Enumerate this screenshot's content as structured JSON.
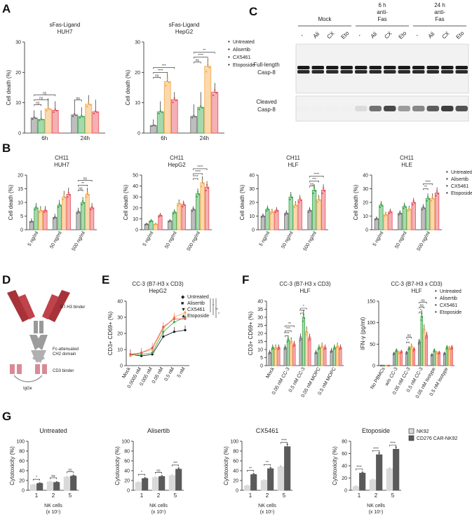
{
  "panel_labels": {
    "A": "A",
    "B": "B",
    "C": "C",
    "D": "D",
    "E": "E",
    "F": "F",
    "G": "G"
  },
  "colors": {
    "untreated": "#6e6e6e",
    "alisertib": "#3aa84a",
    "cx5461": "#f5a94a",
    "etoposide": "#e8505b",
    "nk92": "#d9d9d9",
    "car": "#5a5a5a"
  },
  "legend_treat": [
    "Untreated",
    "Alisertib",
    "CX5461",
    "Etoposide"
  ],
  "legend_treat_marks": [
    "•",
    "•",
    "•",
    "•"
  ],
  "panelA": {
    "charts": [
      {
        "title1": "sFas-Ligand",
        "title2": "HUH7",
        "ylabel": "Cell death (%)",
        "ylim": [
          0,
          30
        ],
        "yticks": [
          "0",
          "10",
          "20",
          "30"
        ],
        "categories": [
          "6h",
          "24h"
        ],
        "series": [
          {
            "name": "Untreated",
            "values": [
              5,
              6
            ]
          },
          {
            "name": "Alisertib",
            "values": [
              4.5,
              5.5
            ]
          },
          {
            "name": "CX5461",
            "values": [
              8,
              9.5
            ]
          },
          {
            "name": "Etoposide",
            "values": [
              7.5,
              7
            ]
          }
        ],
        "errors": [
          [
            2.5,
            5
          ],
          [
            3,
            3
          ],
          [
            3.5,
            3
          ],
          [
            3,
            4
          ]
        ],
        "sig": [
          "ns",
          "ns",
          "ns",
          "ns"
        ]
      },
      {
        "title1": "sFas-Ligand",
        "title2": "HepG2",
        "ylabel": "Cell death (%)",
        "ylim": [
          0,
          30
        ],
        "yticks": [
          "0",
          "10",
          "20",
          "30"
        ],
        "categories": [
          "6h",
          "24h"
        ],
        "series": [
          {
            "name": "Untreated",
            "values": [
              2.5,
              5.5
            ]
          },
          {
            "name": "Alisertib",
            "values": [
              7,
              8.5
            ]
          },
          {
            "name": "CX5461",
            "values": [
              17,
              22
            ]
          },
          {
            "name": "Etoposide",
            "values": [
              11,
              13.5
            ]
          }
        ],
        "errors": [
          [
            2,
            4
          ],
          [
            3.5,
            5
          ],
          [
            2.5,
            2.5
          ],
          [
            2.5,
            3
          ]
        ],
        "sig": [
          "ns",
          "****",
          "***",
          "ns",
          "****",
          "**"
        ]
      }
    ]
  },
  "panelB": {
    "charts": [
      {
        "title1": "CH11",
        "title2": "HUH7",
        "ylabel": "Cell death (%)",
        "ylim": [
          0,
          20
        ],
        "yticks": [
          "0",
          "5",
          "10",
          "15",
          "20"
        ],
        "categories": [
          "5 ng/ml",
          "50 ng/ml",
          "500 ng/ml"
        ],
        "series": [
          {
            "name": "Untreated",
            "values": [
              3,
              4.5,
              6.5
            ]
          },
          {
            "name": "Alisertib",
            "values": [
              8,
              9,
              10
            ]
          },
          {
            "name": "CX5461",
            "values": [
              7,
              12,
              13
            ]
          },
          {
            "name": "Etoposide",
            "values": [
              7,
              13,
              8
            ]
          }
        ],
        "sig": [
          "ns",
          "**",
          "ns"
        ]
      },
      {
        "title1": "CH11",
        "title2": "HepG2",
        "ylabel": "Cell death (%)",
        "ylim": [
          0,
          50
        ],
        "yticks": [
          "0",
          "10",
          "20",
          "30",
          "40",
          "50"
        ],
        "categories": [
          "5 ng/ml",
          "50 ng/ml",
          "500 ng/ml"
        ],
        "series": [
          {
            "name": "Untreated",
            "values": [
              5,
              8,
              18.5
            ]
          },
          {
            "name": "Alisertib",
            "values": [
              8,
              16,
              33
            ]
          },
          {
            "name": "CX5461",
            "values": [
              5,
              24,
              43
            ]
          },
          {
            "name": "Etoposide",
            "values": [
              13,
              23,
              39
            ]
          }
        ],
        "sig": [
          "****",
          "****",
          "****"
        ]
      },
      {
        "title1": "CH11",
        "title2": "HLF",
        "ylabel": "Cell death (%)",
        "ylim": [
          0,
          40
        ],
        "yticks": [
          "0",
          "10",
          "20",
          "30",
          "40"
        ],
        "categories": [
          "5 ng/ml",
          "50 ng/ml",
          "500 ng/ml"
        ],
        "series": [
          {
            "name": "Untreated",
            "values": [
              10,
              12,
              14
            ]
          },
          {
            "name": "Alisertib",
            "values": [
              15,
              24,
              29
            ]
          },
          {
            "name": "CX5461",
            "values": [
              13,
              18,
              22
            ]
          },
          {
            "name": "Etoposide",
            "values": [
              14,
              22,
              29
            ]
          }
        ],
        "sig": [
          "ns",
          "***",
          "****"
        ]
      },
      {
        "title1": "CH11",
        "title2": "HLE",
        "ylabel": "Cell death (%)",
        "ylim": [
          0,
          40
        ],
        "yticks": [
          "0",
          "10",
          "20",
          "30",
          "40"
        ],
        "categories": [
          "5 ng/ml",
          "50 ng/ml",
          "500 ng/ml"
        ],
        "series": [
          {
            "name": "Untreated",
            "values": [
              8,
              12,
              16
            ]
          },
          {
            "name": "Alisertib",
            "values": [
              18,
              17,
              23
            ]
          },
          {
            "name": "CX5461",
            "values": [
              11,
              15,
              23
            ]
          },
          {
            "name": "Etoposide",
            "values": [
              13,
              20,
              27
            ]
          }
        ],
        "sig": [
          "**",
          "****"
        ]
      }
    ]
  },
  "panelC": {
    "groups": [
      "Mock",
      "6 h anti-Fas",
      "24 h anti-Fas"
    ],
    "group_lines": [
      [
        "Mock"
      ],
      [
        "6 h",
        "anti-",
        "Fas"
      ],
      [
        "24 h",
        "anti-",
        "Fas"
      ]
    ],
    "lanes": [
      "-",
      "Ali",
      "CX",
      "Eto",
      "-",
      "Ali",
      "CX",
      "Eto",
      "-",
      "Ali",
      "CX",
      "Eto"
    ],
    "blot1_label": [
      "Full-length",
      "Casp-8"
    ],
    "blot2_label": [
      "Cleaved",
      "Casp-8"
    ],
    "cleaved_intensity": [
      0,
      0,
      0,
      0,
      0.1,
      0.6,
      0.8,
      0.4,
      0.5,
      0.7,
      0.85,
      0.75
    ]
  },
  "panelD": {
    "labels": [
      "B7-H3 binder",
      "Fc-attenuated",
      "CH2 domain",
      "CD3 binder",
      "IgGκ"
    ]
  },
  "panelE": {
    "title1": "CC-3 (B7-H3 x CD3)",
    "title2": "HepG2",
    "ylabel": "CD3+ CD69+ (%)",
    "ylim": [
      0,
      40
    ],
    "yticks": [
      "0",
      "10",
      "20",
      "30",
      "40"
    ],
    "categories": [
      "Mock",
      "0.0005 nM",
      "0.005 nM",
      "0.05 nM",
      "0.5 nM",
      "5 nM"
    ],
    "series": [
      {
        "name": "Untreated",
        "values": [
          7,
          6,
          7,
          18,
          21,
          22
        ]
      },
      {
        "name": "Alisertib",
        "values": [
          7,
          7,
          8,
          21,
          27,
          30
        ]
      },
      {
        "name": "CX5461",
        "values": [
          6,
          8,
          10,
          23,
          30,
          33
        ]
      },
      {
        "name": "Etoposide",
        "values": [
          7,
          8,
          11,
          24,
          29,
          29
        ]
      }
    ],
    "marks": [
      "◆",
      "■",
      "▼",
      "▲"
    ],
    "sig": [
      "*",
      "**",
      "*"
    ]
  },
  "panelF": {
    "charts": [
      {
        "title1": "CC-3 (B7-H3 x CD3)",
        "title2": "HLF",
        "ylabel": "CD3+ CD69+ (%)",
        "ylim": [
          0,
          40
        ],
        "yticks": [
          "0",
          "5",
          "10",
          "15",
          "20",
          "25",
          "30",
          "35",
          "40"
        ],
        "categories": [
          "Mock",
          "0.05 nM CC-3",
          "0.5 nM CC-3",
          "0.05 nM MOPC",
          "0.5 nM MOPC"
        ],
        "series": [
          {
            "name": "Untreated",
            "values": [
              8,
              11,
              17,
              8,
              9
            ]
          },
          {
            "name": "Alisertib",
            "values": [
              11,
              16,
              30,
              11,
              11
            ]
          },
          {
            "name": "CX5461",
            "values": [
              11,
              15,
              21,
              12,
              12
            ]
          },
          {
            "name": "Etoposide",
            "values": [
              11,
              13,
              17,
              11,
              11
            ]
          }
        ],
        "sig": [
          "****",
          "***",
          "**",
          "****",
          "*"
        ]
      },
      {
        "title1": "CC-3 (B7-H3 x CD3)",
        "title2": "HLF",
        "ylabel": "IFN-γ (pg/ml)",
        "ylim": [
          0,
          150
        ],
        "yticks": [
          "0",
          "50",
          "100",
          "150"
        ],
        "categories": [
          "No PBMCs",
          "w/o CC-3",
          "0.05 nM CC-3",
          "0.5 nM CC-3",
          "0.05 nM Isotype",
          "0.5 nM Isotype"
        ],
        "series": [
          {
            "name": "Untreated",
            "values": [
              0,
              28,
              30,
              55,
              25,
              28
            ]
          },
          {
            "name": "Alisertib",
            "values": [
              0,
              35,
              40,
              115,
              35,
              42
            ]
          },
          {
            "name": "CX5461",
            "values": [
              0,
              30,
              45,
              85,
              30,
              40
            ]
          },
          {
            "name": "Etoposide",
            "values": [
              0,
              32,
              38,
              70,
              30,
              42
            ]
          }
        ],
        "sig": [
          "*",
          "ns",
          "*",
          "ns",
          "ns"
        ]
      }
    ]
  },
  "panelG": {
    "legend": [
      "NK92",
      "CD276 CAR-NK92"
    ],
    "xlabel1": "NK cells",
    "xlabel2": "(x 10⁵)",
    "charts": [
      {
        "title": "Untreated",
        "ylabel": "Cytotoxicity (%)",
        "ylim": [
          0,
          100
        ],
        "yticks": [
          "0",
          "20",
          "40",
          "60",
          "80",
          "100"
        ],
        "categories": [
          "1",
          "2",
          "5"
        ],
        "series": [
          {
            "name": "NK92",
            "values": [
              11,
              17,
              27
            ]
          },
          {
            "name": "CD276 CAR-NK92",
            "values": [
              14,
              16,
              29
            ]
          }
        ],
        "sig": [
          "*",
          "ns",
          "ns"
        ]
      },
      {
        "title": "Alisertib",
        "ylabel": "Cytotoxicity (%)",
        "ylim": [
          0,
          100
        ],
        "yticks": [
          "0",
          "20",
          "40",
          "60",
          "80",
          "100"
        ],
        "categories": [
          "1",
          "2",
          "5"
        ],
        "series": [
          {
            "name": "NK92",
            "values": [
              16,
              26,
              30
            ]
          },
          {
            "name": "CD276 CAR-NK92",
            "values": [
              24,
              28,
              43
            ]
          }
        ],
        "sig": [
          "*",
          "ns",
          "***"
        ]
      },
      {
        "title": "CX5461",
        "ylabel": "Cytotoxicity (%)",
        "ylim": [
          0,
          100
        ],
        "yticks": [
          "0",
          "20",
          "40",
          "60",
          "80",
          "100"
        ],
        "categories": [
          "1",
          "2",
          "5"
        ],
        "series": [
          {
            "name": "NK92",
            "values": [
              9,
              20,
              48
            ]
          },
          {
            "name": "CD276 CAR-NK92",
            "values": [
              32,
              44,
              89
            ]
          }
        ],
        "sig": [
          "**",
          "**",
          "****"
        ]
      },
      {
        "title": "Etoposide",
        "ylabel": "Cytotoxicity (%)",
        "ylim": [
          0,
          80
        ],
        "yticks": [
          "0",
          "20",
          "40",
          "60",
          "80"
        ],
        "categories": [
          "1",
          "2",
          "5"
        ],
        "series": [
          {
            "name": "NK92",
            "values": [
              6,
              17,
              35
            ]
          },
          {
            "name": "CD276 CAR-NK92",
            "values": [
              28,
              58,
              67
            ]
          }
        ],
        "sig": [
          "****",
          "****",
          "****"
        ]
      }
    ]
  }
}
